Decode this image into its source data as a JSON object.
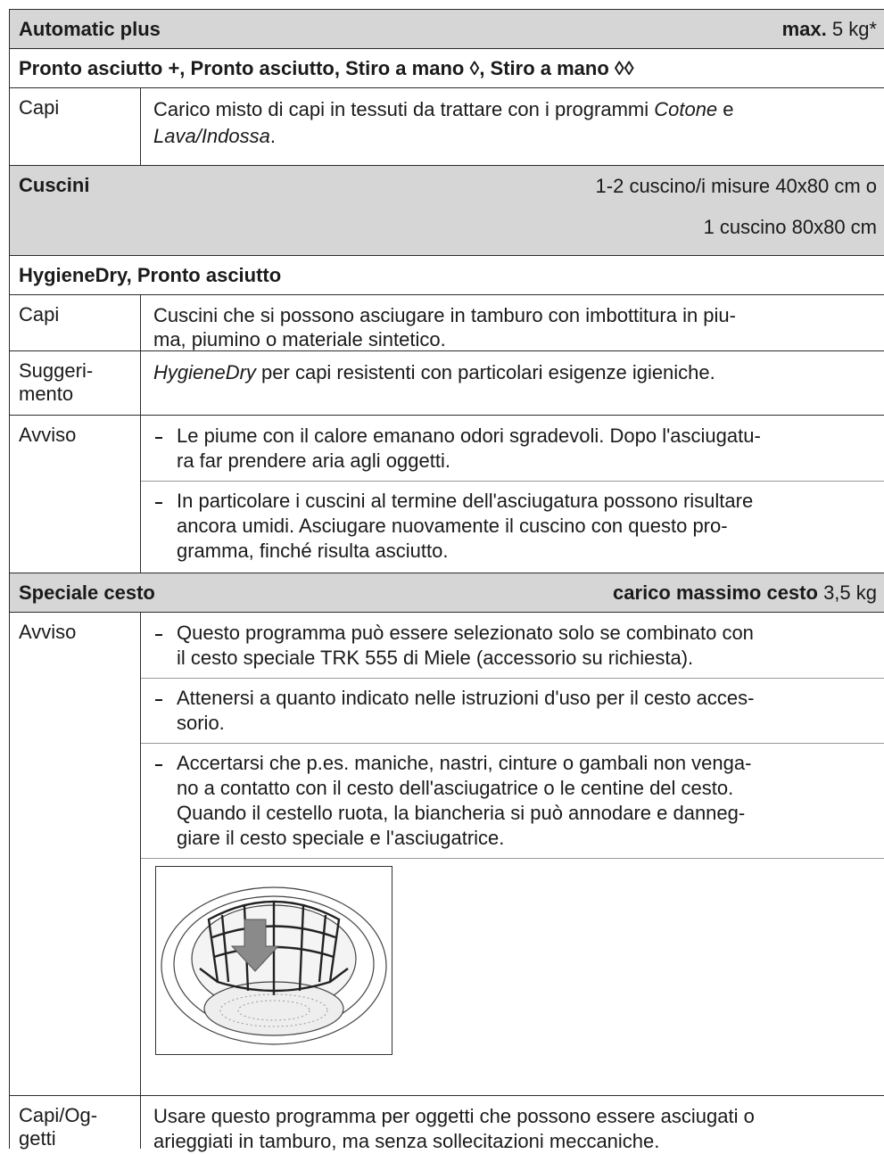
{
  "automatic_plus": {
    "title": "Automatic plus",
    "max_label": "max.",
    "max_value": "5 kg*",
    "programs": "Pronto asciutto +, Pronto asciutto, Stiro a mano ◊, Stiro a mano ◊◊",
    "capi_label": "Capi",
    "capi_text": [
      "Carico misto di capi in tessuti da trattare con i programmi ",
      "Cotone",
      " e",
      "Lava/Indossa",
      "."
    ]
  },
  "cuscini": {
    "title": "Cuscini",
    "load": [
      "1-2 cuscino/i misure 40x80 cm o",
      "1 cuscino 80x80 cm"
    ],
    "programs": "HygieneDry, Pronto asciutto",
    "capi_label": "Capi",
    "capi_lines": [
      "Cuscini che si possono asciugare in tamburo con imbottitura in piu-",
      "ma, piumino o materiale sintetico."
    ],
    "tip_label": [
      "Suggeri-",
      "mento"
    ],
    "tip_text": [
      "HygieneDry",
      " per capi resistenti con particolari esigenze igieniche."
    ],
    "warn_label": "Avviso",
    "warn_bullets": [
      [
        "Le piume con il calore emanano odori sgradevoli. Dopo l'asciugatu-",
        "ra far prendere aria agli oggetti."
      ],
      [
        "In particolare i cuscini al termine dell'asciugatura possono risultare",
        "ancora umidi. Asciugare nuovamente il cuscino con questo pro-",
        "gramma, finché risulta asciutto."
      ]
    ]
  },
  "speciale_cesto": {
    "title": "Speciale cesto",
    "max_label": "carico massimo cesto",
    "max_value": "3,5 kg",
    "warn_label": "Avviso",
    "warn_bullets": [
      [
        "Questo programma può essere selezionato solo se combinato con",
        "il cesto speciale TRK 555 di Miele (accessorio su richiesta)."
      ],
      [
        "Attenersi a quanto indicato nelle istruzioni d'uso per il cesto acces-",
        "sorio."
      ],
      [
        "Accertarsi che p.es. maniche, nastri, cinture o gambali non venga-",
        "no a contatto con il cesto dell'asciugatrice o le centine del cesto.",
        "Quando il cestello ruota, la biancheria si può annodare e danneg-",
        "giare il cesto speciale e l'asciugatrice."
      ]
    ],
    "items_label": [
      "Capi/Og-",
      "getti"
    ],
    "items_lines": [
      "Usare questo programma per oggetti che possono essere asciugati o",
      "arieggiati in tamburo, ma senza sollecitazioni meccaniche."
    ]
  }
}
